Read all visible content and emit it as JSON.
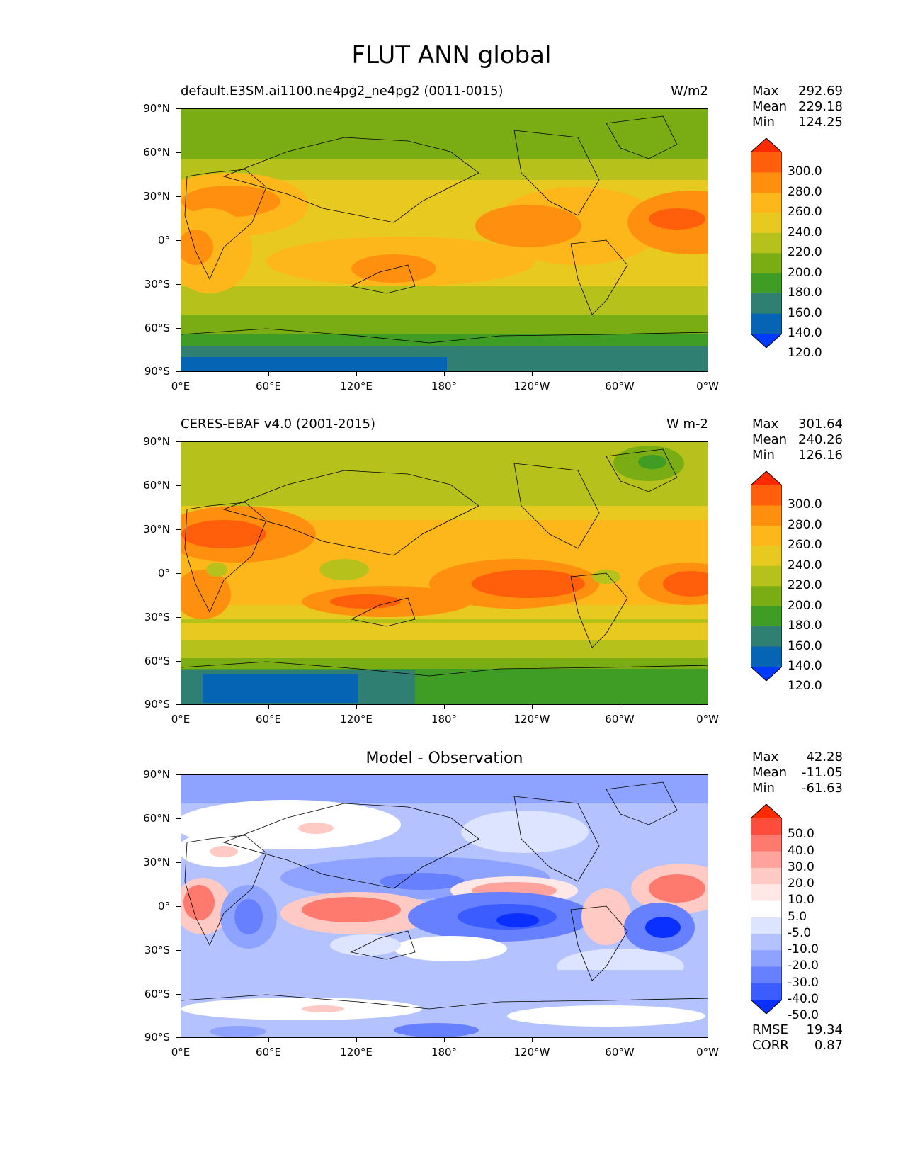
{
  "title": "FLUT ANN global",
  "lat_labels": [
    "90°N",
    "60°N",
    "30°N",
    "0°",
    "30°S",
    "60°S",
    "90°S"
  ],
  "lon_labels": [
    "0°E",
    "60°E",
    "120°E",
    "180°",
    "120°W",
    "60°W",
    "0°W"
  ],
  "panels": [
    {
      "title_left": "default.E3SM.ai1100.ne4pg2_ne4pg2 (0011-0015)",
      "title_right": "W/m2",
      "stats": {
        "max_label": "Max",
        "max": "292.69",
        "mean_label": "Mean",
        "mean": "229.18",
        "min_label": "Min",
        "min": "124.25"
      },
      "colorbar_labels": [
        "300.0",
        "280.0",
        "260.0",
        "240.0",
        "220.0",
        "200.0",
        "180.0",
        "160.0",
        "140.0",
        "120.0"
      ],
      "colorbar_colors": [
        "#ff2a00",
        "#ff5e0a",
        "#ff8f0e",
        "#fdb71a",
        "#e8c91f",
        "#b6c21b",
        "#7aad14",
        "#3f9c24",
        "#2f7f72",
        "#0664b4",
        "#0039ff"
      ]
    },
    {
      "title_left": "CERES-EBAF v4.0 (2001-2015)",
      "title_right": "W m-2",
      "stats": {
        "max_label": "Max",
        "max": "301.64",
        "mean_label": "Mean",
        "mean": "240.26",
        "min_label": "Min",
        "min": "126.16"
      },
      "colorbar_labels": [
        "300.0",
        "280.0",
        "260.0",
        "240.0",
        "220.0",
        "200.0",
        "180.0",
        "160.0",
        "140.0",
        "120.0"
      ],
      "colorbar_colors": [
        "#ff2a00",
        "#ff5e0a",
        "#ff8f0e",
        "#fdb71a",
        "#e8c91f",
        "#b6c21b",
        "#7aad14",
        "#3f9c24",
        "#2f7f72",
        "#0664b4",
        "#0039ff"
      ]
    },
    {
      "title_center": "Model - Observation",
      "stats": {
        "max_label": "Max",
        "max": "42.28",
        "mean_label": "Mean",
        "mean": "-11.05",
        "min_label": "Min",
        "min": "-61.63"
      },
      "colorbar_labels": [
        "50.0",
        "40.0",
        "30.0",
        "20.0",
        "10.0",
        "5.0",
        "-5.0",
        "-10.0",
        "-20.0",
        "-30.0",
        "-40.0",
        "-50.0"
      ],
      "colorbar_colors": [
        "#ff2a00",
        "#ff4d3d",
        "#ff7a6e",
        "#ffa39c",
        "#ffc9c4",
        "#ffe8e6",
        "#ffffff",
        "#dde4ff",
        "#b4c2ff",
        "#8ea3ff",
        "#6680ff",
        "#3b5cff",
        "#0a30ff"
      ],
      "metrics": {
        "rmse_label": "RMSE",
        "rmse": "19.34",
        "corr_label": "CORR",
        "corr": "0.87"
      }
    }
  ]
}
